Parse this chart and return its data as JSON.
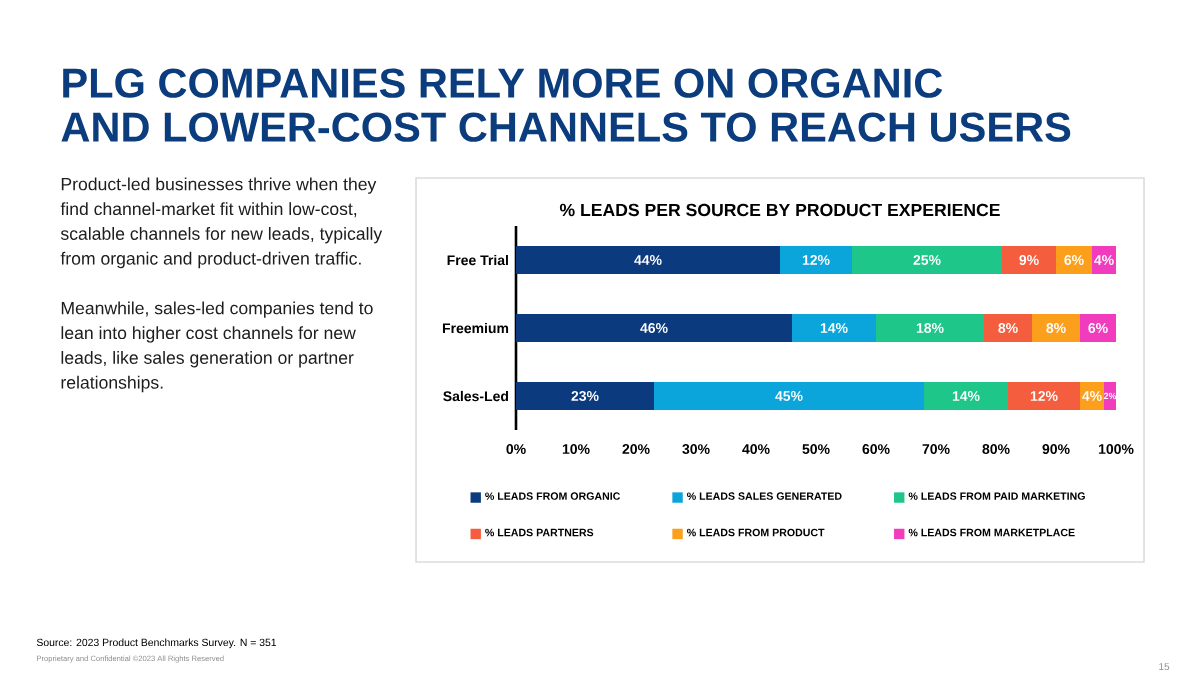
{
  "chart_data": {
    "type": "bar",
    "orientation": "horizontal",
    "stacked": true,
    "title": "PLG COMPANIES RELY MORE ON ORGANIC AND LOWER-COST CHANNELS TO REACH USERS",
    "subtitle": "% LEADS PER SOURCE BY PRODUCT EXPERIENCE",
    "categories": [
      "Free Trial",
      "Freemium",
      "Sales-Led"
    ],
    "series": [
      {
        "name": "% LEADS FROM ORGANIC",
        "color": "#0b3a7e",
        "values": [
          44,
          46,
          23
        ],
        "value_labels": [
          "44%",
          "46%",
          "23%"
        ]
      },
      {
        "name": "% LEADS SALES GENERATED",
        "color": "#0ba5dc",
        "values": [
          12,
          14,
          45
        ],
        "value_labels": [
          "12%",
          "14%",
          "45%"
        ]
      },
      {
        "name": "% LEADS FROM PAID MARKETING",
        "color": "#1ec68a",
        "values": [
          25,
          18,
          14
        ],
        "value_labels": [
          "25%",
          "18%",
          "14%"
        ]
      },
      {
        "name": "% LEADS PARTNERS",
        "color": "#f45d3d",
        "values": [
          9,
          8,
          12
        ],
        "value_labels": [
          "9%",
          "8%",
          "12%"
        ]
      },
      {
        "name": "% LEADS FROM PRODUCT",
        "color": "#fb9f1c",
        "values": [
          6,
          8,
          4
        ],
        "value_labels": [
          "6%",
          "8%",
          "4%"
        ]
      },
      {
        "name": "% LEADS FROM MARKETPLACE",
        "color": "#f03cbd",
        "values": [
          4,
          6,
          2
        ],
        "value_labels": [
          "4%",
          "6%",
          "2%"
        ]
      }
    ],
    "xlim": [
      0,
      100
    ],
    "xticks": [
      {
        "value": 0,
        "label": "0%"
      },
      {
        "value": 10,
        "label": "10%"
      },
      {
        "value": 20,
        "label": "20%"
      },
      {
        "value": 30,
        "label": "30%"
      },
      {
        "value": 40,
        "label": "40%"
      },
      {
        "value": 50,
        "label": "50%"
      },
      {
        "value": 60,
        "label": "60%"
      },
      {
        "value": 70,
        "label": "70%"
      },
      {
        "value": 80,
        "label": "80%"
      },
      {
        "value": 90,
        "label": "90%"
      },
      {
        "value": 100,
        "label": "100%"
      }
    ],
    "legend": "bottom",
    "annotations": [
      "Product-led businesses thrive when they find channel-market fit within low-cost, scalable channels for new leads, typically from organic and product-driven traffic.",
      "Meanwhile, sales-led companies tend to lean into higher cost channels for new leads, like sales generation or partner relationships.",
      "Source: 2023 Product Benchmarks Survey. N = 351",
      "Proprietary and Confidential ©2023 All Rights Reserved",
      "15"
    ]
  }
}
